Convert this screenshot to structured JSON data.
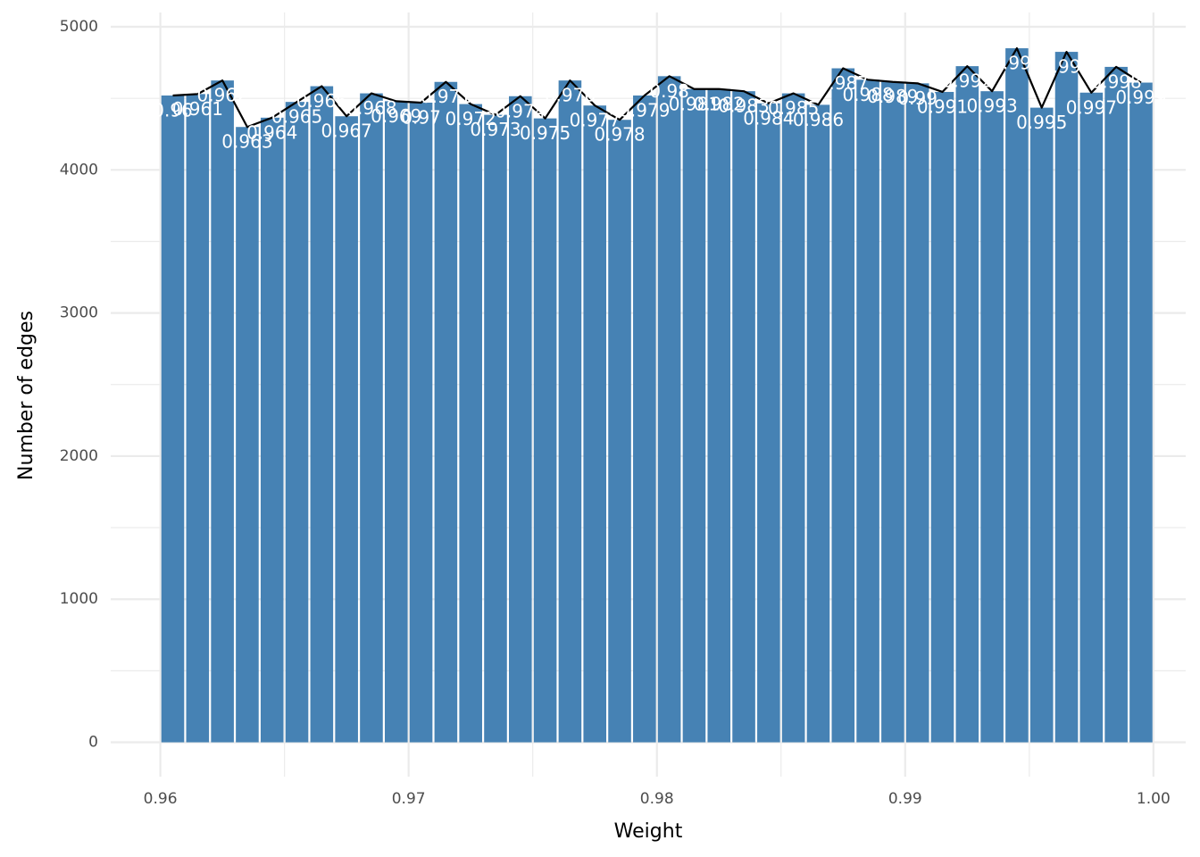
{
  "chart_data": {
    "type": "bar",
    "xlabel": "Weight",
    "ylabel": "Number of edges",
    "xlim": [
      0.958,
      1.0013
    ],
    "ylim": [
      -240,
      5100
    ],
    "x_ticks": [
      "0.96",
      "0.97",
      "0.98",
      "0.99",
      "1.00"
    ],
    "x_tick_values": [
      0.96,
      0.97,
      0.98,
      0.99,
      1.0
    ],
    "y_ticks": [
      "0",
      "1000",
      "2000",
      "3000",
      "4000",
      "5000"
    ],
    "y_tick_values": [
      0,
      1000,
      2000,
      3000,
      4000,
      5000
    ],
    "bar_width": 0.00092,
    "grid": true,
    "legend": "none",
    "colors": {
      "bar": "#4682b4",
      "line": "#000000",
      "label": "#ffffff",
      "grid": "#ebebeb"
    },
    "bars": [
      {
        "x": 0.9605,
        "value": 4520,
        "label": "0.96"
      },
      {
        "x": 0.9615,
        "value": 4530,
        "label": "0.961"
      },
      {
        "x": 0.9625,
        "value": 4625,
        "label": "0.962"
      },
      {
        "x": 0.9635,
        "value": 4300,
        "label": "0.963"
      },
      {
        "x": 0.9645,
        "value": 4365,
        "label": "0.964"
      },
      {
        "x": 0.9655,
        "value": 4475,
        "label": "0.965"
      },
      {
        "x": 0.9665,
        "value": 4585,
        "label": "0.966"
      },
      {
        "x": 0.9675,
        "value": 4375,
        "label": "0.967"
      },
      {
        "x": 0.9685,
        "value": 4535,
        "label": "0.968"
      },
      {
        "x": 0.9695,
        "value": 4480,
        "label": "0.969"
      },
      {
        "x": 0.9705,
        "value": 4470,
        "label": "0.97"
      },
      {
        "x": 0.9715,
        "value": 4615,
        "label": "0.971"
      },
      {
        "x": 0.9725,
        "value": 4460,
        "label": "0.972"
      },
      {
        "x": 0.9735,
        "value": 4385,
        "label": "0.973"
      },
      {
        "x": 0.9745,
        "value": 4515,
        "label": "0.974"
      },
      {
        "x": 0.9755,
        "value": 4360,
        "label": "0.975"
      },
      {
        "x": 0.9765,
        "value": 4625,
        "label": "0.976"
      },
      {
        "x": 0.9775,
        "value": 4450,
        "label": "0.977"
      },
      {
        "x": 0.9785,
        "value": 4350,
        "label": "0.978"
      },
      {
        "x": 0.9795,
        "value": 4520,
        "label": "0.979"
      },
      {
        "x": 0.9805,
        "value": 4655,
        "label": "0.98"
      },
      {
        "x": 0.9815,
        "value": 4565,
        "label": "0.981"
      },
      {
        "x": 0.9825,
        "value": 4565,
        "label": "0.982"
      },
      {
        "x": 0.9835,
        "value": 4550,
        "label": "0.983"
      },
      {
        "x": 0.9845,
        "value": 4465,
        "label": "0.984"
      },
      {
        "x": 0.9855,
        "value": 4535,
        "label": "0.985"
      },
      {
        "x": 0.9865,
        "value": 4455,
        "label": "0.986"
      },
      {
        "x": 0.9875,
        "value": 4710,
        "label": "0.987"
      },
      {
        "x": 0.9885,
        "value": 4630,
        "label": "0.988"
      },
      {
        "x": 0.9895,
        "value": 4615,
        "label": "0.989"
      },
      {
        "x": 0.9905,
        "value": 4605,
        "label": "0.99"
      },
      {
        "x": 0.9915,
        "value": 4545,
        "label": "0.991"
      },
      {
        "x": 0.9925,
        "value": 4725,
        "label": "0.992"
      },
      {
        "x": 0.9935,
        "value": 4550,
        "label": "0.993"
      },
      {
        "x": 0.9945,
        "value": 4850,
        "label": "0.994"
      },
      {
        "x": 0.9955,
        "value": 4435,
        "label": "0.995"
      },
      {
        "x": 0.9965,
        "value": 4825,
        "label": "0.996"
      },
      {
        "x": 0.9975,
        "value": 4540,
        "label": "0.997"
      },
      {
        "x": 0.9985,
        "value": 4720,
        "label": "0.998"
      },
      {
        "x": 0.9995,
        "value": 4610,
        "label": "0.999"
      }
    ]
  }
}
